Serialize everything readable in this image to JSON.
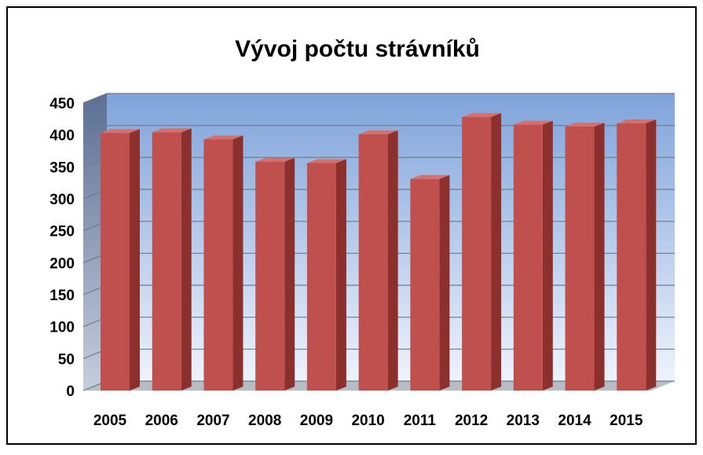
{
  "chart_data": {
    "type": "bar3d",
    "title": "Vývoj počtu strávníků",
    "categories": [
      "2005",
      "2006",
      "2007",
      "2008",
      "2009",
      "2010",
      "2011",
      "2012",
      "2013",
      "2014",
      "2015"
    ],
    "values": [
      403,
      404,
      393,
      358,
      356,
      401,
      331,
      428,
      416,
      413,
      418
    ],
    "color": "#c0504d",
    "ylim": [
      0,
      450
    ],
    "yticks": [
      0,
      50,
      100,
      150,
      200,
      250,
      300,
      350,
      400,
      450
    ],
    "grid": true
  }
}
